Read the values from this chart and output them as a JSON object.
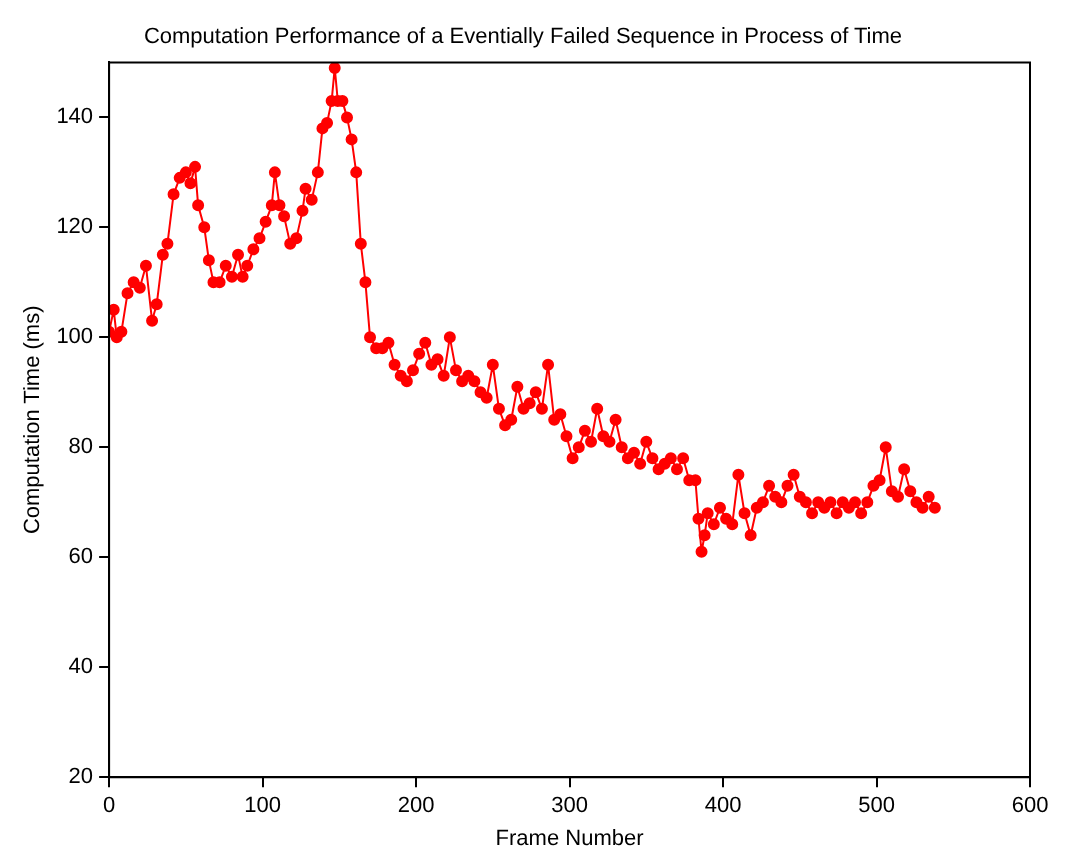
{
  "chart_data": {
    "type": "line",
    "title": "Computation Performance of a Eventially Failed Sequence in Process of Time",
    "xlabel": "Frame Number",
    "ylabel": "Computation Time (ms)",
    "xlim": [
      0,
      600
    ],
    "xticks": [
      0,
      100,
      200,
      300,
      400,
      500,
      600
    ],
    "ylim": [
      20,
      150
    ],
    "yticks": [
      20,
      40,
      60,
      80,
      100,
      120,
      140
    ],
    "grid": false,
    "legend": false,
    "marker": "circle",
    "line_style": "solid",
    "series": [
      {
        "color": "#ff0000",
        "x": [
          0,
          3,
          5,
          8,
          12,
          16,
          20,
          24,
          28,
          31,
          35,
          38,
          42,
          46,
          50,
          53,
          56,
          58,
          62,
          65,
          68,
          72,
          76,
          80,
          84,
          87,
          90,
          94,
          98,
          102,
          106,
          108,
          111,
          114,
          118,
          122,
          126,
          128,
          132,
          136,
          139,
          142,
          145,
          147,
          149,
          152,
          155,
          158,
          161,
          164,
          167,
          170,
          174,
          178,
          182,
          186,
          190,
          194,
          198,
          202,
          206,
          210,
          214,
          218,
          222,
          226,
          230,
          234,
          238,
          242,
          246,
          250,
          254,
          258,
          262,
          266,
          270,
          274,
          278,
          282,
          286,
          290,
          294,
          298,
          302,
          306,
          310,
          314,
          318,
          322,
          326,
          330,
          334,
          338,
          342,
          346,
          350,
          354,
          358,
          362,
          366,
          370,
          374,
          378,
          382,
          384,
          386,
          388,
          390,
          394,
          398,
          402,
          406,
          410,
          414,
          418,
          422,
          426,
          430,
          434,
          438,
          442,
          446,
          450,
          454,
          458,
          462,
          466,
          470,
          474,
          478,
          482,
          486,
          490,
          494,
          498,
          502,
          506,
          510,
          514,
          518,
          522,
          526,
          530,
          534,
          538
        ],
        "values": [
          101,
          105,
          100,
          101,
          108,
          110,
          109,
          113,
          103,
          106,
          115,
          117,
          126,
          129,
          130,
          128,
          131,
          124,
          120,
          114,
          110,
          110,
          113,
          111,
          115,
          111,
          113,
          116,
          118,
          121,
          124,
          130,
          124,
          122,
          117,
          118,
          123,
          127,
          125,
          130,
          138,
          139,
          143,
          149,
          143,
          143,
          140,
          136,
          130,
          117,
          110,
          100,
          98,
          98,
          99,
          95,
          93,
          92,
          94,
          97,
          99,
          95,
          96,
          93,
          100,
          94,
          92,
          93,
          92,
          90,
          89,
          95,
          87,
          84,
          85,
          91,
          87,
          88,
          90,
          87,
          95,
          85,
          86,
          82,
          78,
          80,
          83,
          81,
          87,
          82,
          81,
          85,
          80,
          78,
          79,
          77,
          81,
          78,
          76,
          77,
          78,
          76,
          78,
          74,
          74,
          67,
          61,
          64,
          68,
          66,
          69,
          67,
          66,
          75,
          68,
          64,
          69,
          70,
          73,
          71,
          70,
          73,
          75,
          71,
          70,
          68,
          70,
          69,
          70,
          68,
          70,
          69,
          70,
          68,
          70,
          73,
          74,
          80,
          72,
          71,
          76,
          72,
          70,
          69,
          71,
          69
        ]
      }
    ]
  }
}
